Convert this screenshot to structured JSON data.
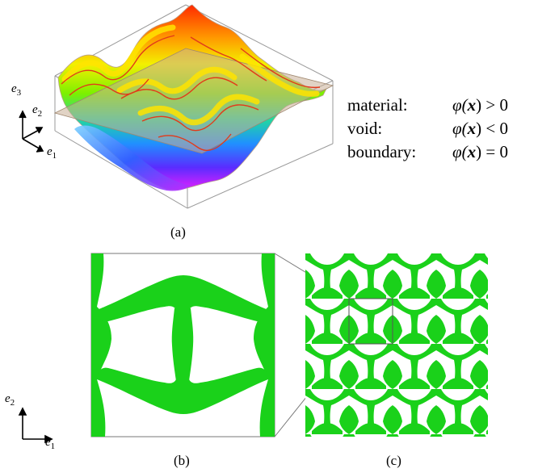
{
  "panel_a": {
    "axes": {
      "e3": "e",
      "e3_sub": "3",
      "e2": "e",
      "e2_sub": "2",
      "e1": "e",
      "e1_sub": "1"
    },
    "caption": "(a)"
  },
  "legend": {
    "rows": [
      {
        "label": "material:",
        "phi": "φ(",
        "x": "x",
        "rel": ") > 0"
      },
      {
        "label": "void:",
        "phi": "φ(",
        "x": "x",
        "rel": ") < 0"
      },
      {
        "label": "boundary:",
        "phi": "φ(",
        "x": "x",
        "rel": ") = 0"
      }
    ]
  },
  "panel_b": {
    "axes": {
      "e2": "e",
      "e2_sub": "2",
      "e1": "e",
      "e1_sub": "1"
    },
    "caption": "(b)"
  },
  "panel_c": {
    "caption": "(c)"
  },
  "colors": {
    "material": "#1ad11a",
    "plane": "#c8ae95",
    "frame": "#999999"
  }
}
